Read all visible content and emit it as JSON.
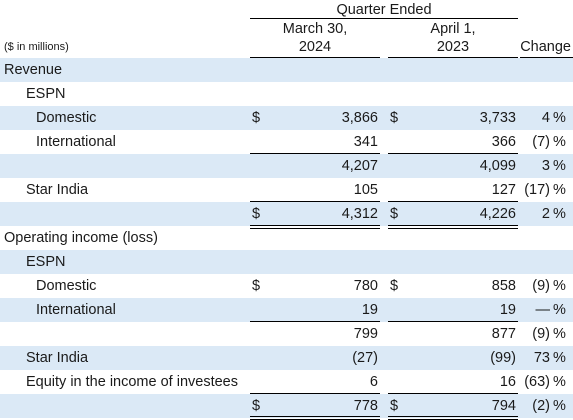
{
  "header": {
    "group_title": "Quarter Ended",
    "col1_line1": "March 30,",
    "col1_line2": "2024",
    "col2_line1": "April 1,",
    "col2_line2": "2023",
    "change": "Change",
    "units_note": "($ in millions)"
  },
  "rows": [
    {
      "label": "Revenue",
      "cur_a": "",
      "a": "",
      "cur_b": "",
      "b": "",
      "change": "",
      "pct": ""
    },
    {
      "label": "ESPN",
      "cur_a": "",
      "a": "",
      "cur_b": "",
      "b": "",
      "change": "",
      "pct": ""
    },
    {
      "label": "Domestic",
      "cur_a": "$",
      "a": "3,866",
      "cur_b": "$",
      "b": "3,733",
      "change": "4",
      "pct": "%"
    },
    {
      "label": "International",
      "cur_a": "",
      "a": "341",
      "cur_b": "",
      "b": "366",
      "change": "(7)",
      "pct": "%"
    },
    {
      "label": "",
      "cur_a": "",
      "a": "4,207",
      "cur_b": "",
      "b": "4,099",
      "change": "3",
      "pct": "%"
    },
    {
      "label": "Star India",
      "cur_a": "",
      "a": "105",
      "cur_b": "",
      "b": "127",
      "change": "(17)",
      "pct": "%"
    },
    {
      "label": "",
      "cur_a": "$",
      "a": "4,312",
      "cur_b": "$",
      "b": "4,226",
      "change": "2",
      "pct": "%"
    },
    {
      "label": "Operating income (loss)",
      "cur_a": "",
      "a": "",
      "cur_b": "",
      "b": "",
      "change": "",
      "pct": ""
    },
    {
      "label": "ESPN",
      "cur_a": "",
      "a": "",
      "cur_b": "",
      "b": "",
      "change": "",
      "pct": ""
    },
    {
      "label": "Domestic",
      "cur_a": "$",
      "a": "780",
      "cur_b": "$",
      "b": "858",
      "change": "(9)",
      "pct": "%"
    },
    {
      "label": "International",
      "cur_a": "",
      "a": "19",
      "cur_b": "",
      "b": "19",
      "change": "—",
      "pct": "%"
    },
    {
      "label": "",
      "cur_a": "",
      "a": "799",
      "cur_b": "",
      "b": "877",
      "change": "(9)",
      "pct": "%"
    },
    {
      "label": "Star India",
      "cur_a": "",
      "a": "(27)",
      "cur_b": "",
      "b": "(99)",
      "change": "73",
      "pct": "%"
    },
    {
      "label": "Equity in the income of investees",
      "cur_a": "",
      "a": "6",
      "cur_b": "",
      "b": "16",
      "change": "(63)",
      "pct": "%"
    },
    {
      "label": "",
      "cur_a": "$",
      "a": "778",
      "cur_b": "$",
      "b": "794",
      "change": "(2)",
      "pct": "%"
    }
  ]
}
